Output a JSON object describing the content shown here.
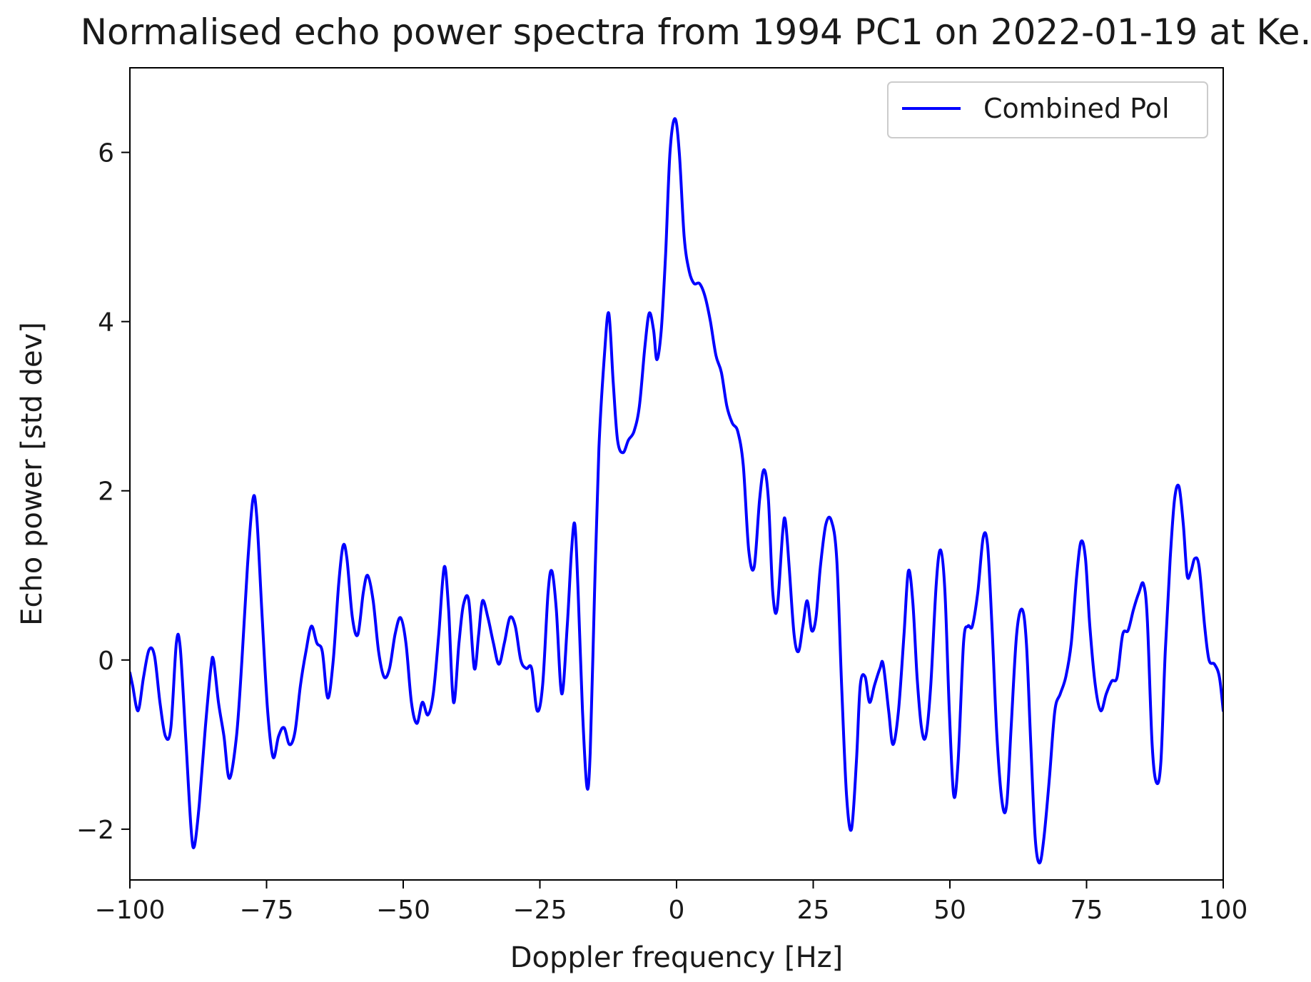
{
  "chart_data": {
    "type": "line",
    "title": "Normalised echo power spectra from 1994 PC1 on 2022-01-19 at Ke.",
    "xlabel": "Doppler frequency [Hz]",
    "ylabel": "Echo power [std dev]",
    "xlim": [
      -100,
      100
    ],
    "ylim": [
      -2.6,
      7.0
    ],
    "x_ticks": [
      -100,
      -75,
      -50,
      -25,
      0,
      25,
      50,
      75,
      100
    ],
    "x_tick_labels": [
      "−100",
      "−75",
      "−50",
      "−25",
      "0",
      "25",
      "50",
      "75",
      "100"
    ],
    "y_ticks": [
      -2,
      0,
      2,
      4,
      6
    ],
    "y_tick_labels": [
      "−2",
      "0",
      "2",
      "4",
      "6"
    ],
    "grid": false,
    "legend_position": "top-right",
    "series": [
      {
        "name": "Combined Pol",
        "color": "#0000ff",
        "points": [
          [
            -100,
            -0.15
          ],
          [
            -99.5,
            -0.3
          ],
          [
            -98.5,
            -0.6
          ],
          [
            -97.5,
            -0.2
          ],
          [
            -96.5,
            0.12
          ],
          [
            -95.5,
            0.05
          ],
          [
            -94.5,
            -0.5
          ],
          [
            -93.5,
            -0.9
          ],
          [
            -92.5,
            -0.8
          ],
          [
            -91.5,
            0.2
          ],
          [
            -90.8,
            0.15
          ],
          [
            -89.8,
            -0.9
          ],
          [
            -88.8,
            -2.0
          ],
          [
            -88.2,
            -2.2
          ],
          [
            -87.3,
            -1.7
          ],
          [
            -86.2,
            -0.8
          ],
          [
            -85.2,
            -0.1
          ],
          [
            -84.7,
            0.0
          ],
          [
            -83.8,
            -0.5
          ],
          [
            -82.8,
            -0.9
          ],
          [
            -81.8,
            -1.4
          ],
          [
            -80.5,
            -0.9
          ],
          [
            -79.5,
            0.0
          ],
          [
            -78.5,
            1.1
          ],
          [
            -77.5,
            1.9
          ],
          [
            -76.8,
            1.7
          ],
          [
            -75.8,
            0.5
          ],
          [
            -74.8,
            -0.6
          ],
          [
            -73.8,
            -1.15
          ],
          [
            -72.8,
            -0.9
          ],
          [
            -71.8,
            -0.8
          ],
          [
            -70.8,
            -1.0
          ],
          [
            -69.8,
            -0.85
          ],
          [
            -68.8,
            -0.3
          ],
          [
            -67.8,
            0.1
          ],
          [
            -66.8,
            0.4
          ],
          [
            -65.8,
            0.2
          ],
          [
            -64.8,
            0.1
          ],
          [
            -63.8,
            -0.45
          ],
          [
            -62.8,
            0.0
          ],
          [
            -61.8,
            0.9
          ],
          [
            -61.0,
            1.35
          ],
          [
            -60.3,
            1.2
          ],
          [
            -59.3,
            0.5
          ],
          [
            -58.3,
            0.3
          ],
          [
            -57.3,
            0.8
          ],
          [
            -56.5,
            1.0
          ],
          [
            -55.5,
            0.7
          ],
          [
            -54.5,
            0.1
          ],
          [
            -53.5,
            -0.2
          ],
          [
            -52.5,
            -0.1
          ],
          [
            -51.5,
            0.3
          ],
          [
            -50.5,
            0.5
          ],
          [
            -49.5,
            0.2
          ],
          [
            -48.5,
            -0.5
          ],
          [
            -47.5,
            -0.75
          ],
          [
            -46.5,
            -0.5
          ],
          [
            -45.5,
            -0.65
          ],
          [
            -44.5,
            -0.4
          ],
          [
            -43.5,
            0.3
          ],
          [
            -42.5,
            1.1
          ],
          [
            -41.7,
            0.6
          ],
          [
            -40.8,
            -0.5
          ],
          [
            -39.8,
            0.2
          ],
          [
            -39.0,
            0.65
          ],
          [
            -38.0,
            0.7
          ],
          [
            -37.0,
            -0.1
          ],
          [
            -36.2,
            0.3
          ],
          [
            -35.5,
            0.7
          ],
          [
            -34.5,
            0.5
          ],
          [
            -33.5,
            0.2
          ],
          [
            -32.5,
            -0.05
          ],
          [
            -31.5,
            0.2
          ],
          [
            -30.5,
            0.5
          ],
          [
            -29.5,
            0.4
          ],
          [
            -28.5,
            0.0
          ],
          [
            -27.5,
            -0.1
          ],
          [
            -26.5,
            -0.1
          ],
          [
            -25.5,
            -0.6
          ],
          [
            -24.5,
            -0.3
          ],
          [
            -23.5,
            0.8
          ],
          [
            -22.8,
            1.05
          ],
          [
            -22.0,
            0.6
          ],
          [
            -21.0,
            -0.4
          ],
          [
            -20.0,
            0.4
          ],
          [
            -19.2,
            1.3
          ],
          [
            -18.6,
            1.6
          ],
          [
            -18.0,
            0.8
          ],
          [
            -17.2,
            -0.6
          ],
          [
            -16.4,
            -1.5
          ],
          [
            -15.8,
            -1.1
          ],
          [
            -15.0,
            0.8
          ],
          [
            -14.2,
            2.5
          ],
          [
            -13.2,
            3.6
          ],
          [
            -12.4,
            4.1
          ],
          [
            -11.6,
            3.3
          ],
          [
            -10.8,
            2.6
          ],
          [
            -9.8,
            2.45
          ],
          [
            -8.8,
            2.6
          ],
          [
            -7.8,
            2.7
          ],
          [
            -6.8,
            3.0
          ],
          [
            -5.8,
            3.7
          ],
          [
            -5.0,
            4.1
          ],
          [
            -4.2,
            3.9
          ],
          [
            -3.6,
            3.55
          ],
          [
            -2.8,
            3.9
          ],
          [
            -2.0,
            4.8
          ],
          [
            -1.2,
            6.0
          ],
          [
            -0.3,
            6.4
          ],
          [
            0.5,
            6.0
          ],
          [
            1.4,
            5.0
          ],
          [
            2.3,
            4.6
          ],
          [
            3.2,
            4.45
          ],
          [
            4.2,
            4.45
          ],
          [
            5.2,
            4.3
          ],
          [
            6.2,
            4.0
          ],
          [
            7.2,
            3.6
          ],
          [
            8.2,
            3.4
          ],
          [
            9.2,
            3.0
          ],
          [
            10.2,
            2.8
          ],
          [
            11.2,
            2.7
          ],
          [
            12.2,
            2.3
          ],
          [
            13.2,
            1.3
          ],
          [
            14.2,
            1.1
          ],
          [
            15.2,
            1.9
          ],
          [
            16.0,
            2.25
          ],
          [
            16.8,
            1.9
          ],
          [
            17.6,
            0.8
          ],
          [
            18.4,
            0.6
          ],
          [
            19.4,
            1.5
          ],
          [
            19.9,
            1.65
          ],
          [
            20.6,
            1.1
          ],
          [
            21.5,
            0.3
          ],
          [
            22.3,
            0.1
          ],
          [
            23.1,
            0.4
          ],
          [
            23.9,
            0.7
          ],
          [
            24.7,
            0.35
          ],
          [
            25.5,
            0.5
          ],
          [
            26.3,
            1.1
          ],
          [
            27.3,
            1.6
          ],
          [
            28.3,
            1.65
          ],
          [
            29.3,
            1.2
          ],
          [
            30.2,
            -0.3
          ],
          [
            31.1,
            -1.6
          ],
          [
            32.0,
            -2.0
          ],
          [
            32.9,
            -1.2
          ],
          [
            33.6,
            -0.3
          ],
          [
            34.5,
            -0.2
          ],
          [
            35.3,
            -0.5
          ],
          [
            36.2,
            -0.3
          ],
          [
            37.2,
            -0.1
          ],
          [
            37.8,
            -0.05
          ],
          [
            38.8,
            -0.6
          ],
          [
            39.6,
            -1.0
          ],
          [
            40.6,
            -0.6
          ],
          [
            41.6,
            0.3
          ],
          [
            42.4,
            1.05
          ],
          [
            43.2,
            0.7
          ],
          [
            44.0,
            -0.2
          ],
          [
            44.8,
            -0.8
          ],
          [
            45.6,
            -0.9
          ],
          [
            46.5,
            -0.3
          ],
          [
            47.5,
            0.9
          ],
          [
            48.3,
            1.3
          ],
          [
            49.1,
            0.8
          ],
          [
            49.9,
            -0.6
          ],
          [
            50.7,
            -1.6
          ],
          [
            51.5,
            -1.2
          ],
          [
            52.5,
            0.2
          ],
          [
            53.3,
            0.4
          ],
          [
            54.1,
            0.4
          ],
          [
            55.1,
            0.8
          ],
          [
            56.1,
            1.45
          ],
          [
            56.9,
            1.35
          ],
          [
            57.7,
            0.4
          ],
          [
            58.6,
            -0.9
          ],
          [
            59.6,
            -1.7
          ],
          [
            60.4,
            -1.7
          ],
          [
            61.2,
            -0.8
          ],
          [
            62.2,
            0.3
          ],
          [
            63.2,
            0.6
          ],
          [
            64.0,
            0.2
          ],
          [
            64.8,
            -1.0
          ],
          [
            65.6,
            -2.1
          ],
          [
            66.4,
            -2.4
          ],
          [
            67.2,
            -2.1
          ],
          [
            68.2,
            -1.4
          ],
          [
            69.2,
            -0.6
          ],
          [
            70.2,
            -0.4
          ],
          [
            71.2,
            -0.2
          ],
          [
            72.2,
            0.2
          ],
          [
            73.2,
            1.0
          ],
          [
            74.0,
            1.4
          ],
          [
            74.8,
            1.2
          ],
          [
            75.6,
            0.4
          ],
          [
            76.6,
            -0.3
          ],
          [
            77.6,
            -0.6
          ],
          [
            78.6,
            -0.4
          ],
          [
            79.6,
            -0.25
          ],
          [
            80.6,
            -0.2
          ],
          [
            81.6,
            0.3
          ],
          [
            82.6,
            0.35
          ],
          [
            83.6,
            0.6
          ],
          [
            84.6,
            0.8
          ],
          [
            85.4,
            0.9
          ],
          [
            86.1,
            0.5
          ],
          [
            87.0,
            -1.0
          ],
          [
            87.8,
            -1.45
          ],
          [
            88.6,
            -1.2
          ],
          [
            89.4,
            0.1
          ],
          [
            90.3,
            1.2
          ],
          [
            91.1,
            1.9
          ],
          [
            91.9,
            2.05
          ],
          [
            92.7,
            1.6
          ],
          [
            93.4,
            1.0
          ],
          [
            94.1,
            1.05
          ],
          [
            94.8,
            1.2
          ],
          [
            95.6,
            1.1
          ],
          [
            96.6,
            0.4
          ],
          [
            97.4,
            0.0
          ],
          [
            98.4,
            -0.05
          ],
          [
            99.3,
            -0.2
          ],
          [
            100,
            -0.6
          ]
        ]
      }
    ]
  }
}
